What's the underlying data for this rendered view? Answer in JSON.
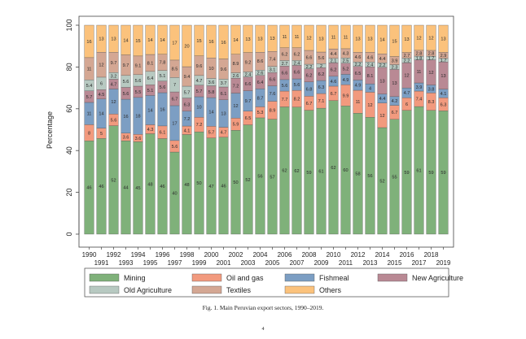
{
  "caption": "Fig. 1. Main Peruvian export sectors, 1990–2019.",
  "page_number": "4",
  "chart_data": {
    "type": "bar",
    "stacked": true,
    "ylabel": "Percentage",
    "ylim": [
      0,
      100
    ],
    "yticks": [
      0,
      20,
      40,
      60,
      80,
      100
    ],
    "grid": false,
    "legend_position": "bottom",
    "categories": [
      "1990",
      "1991",
      "1992",
      "1993",
      "1994",
      "1995",
      "1996",
      "1997",
      "1998",
      "1999",
      "2000",
      "2001",
      "2002",
      "2003",
      "2004",
      "2005",
      "2006",
      "2007",
      "2008",
      "2009",
      "2010",
      "2011",
      "2012",
      "2013",
      "2014",
      "2015",
      "2016",
      "2017",
      "2018",
      "2019"
    ],
    "series": [
      {
        "name": "Mining",
        "color": "#7fb17a",
        "values": [
          46,
          46,
          52,
          44,
          45,
          48,
          46,
          40,
          48,
          50,
          47,
          46,
          50,
          52,
          56,
          57,
          62,
          62,
          59,
          61,
          62,
          60,
          58,
          56,
          52,
          55,
          59,
          61,
          59,
          59
        ]
      },
      {
        "name": "Oil and gas",
        "color": "#f29a7e",
        "values": [
          8,
          5,
          5.6,
          3.6,
          3.6,
          4.3,
          6.1,
          5.6,
          4.1,
          7.2,
          5.7,
          4.7,
          5.9,
          6.5,
          5.3,
          8.9,
          7.7,
          8.2,
          6.7,
          7.1,
          6.7,
          9.9,
          11,
          12,
          12,
          6.7,
          6,
          7.4,
          8.3,
          6.3
        ]
      },
      {
        "name": "Fishmeal",
        "color": "#7c9ec3",
        "values": [
          11,
          14,
          12,
          16,
          18,
          14,
          16,
          17,
          7.2,
          10,
          14,
          13,
          12,
          9.7,
          8.7,
          7.6,
          5.6,
          5.6,
          6.8,
          6.3,
          4.6,
          4.9,
          4.9,
          4,
          4.4,
          4.2,
          4.7,
          3.9,
          3.8,
          4.1
        ]
      },
      {
        "name": "New Agriculture",
        "color": "#b98994",
        "values": [
          5.7,
          4.5,
          4.7,
          5.6,
          5.5,
          5.1,
          5.6,
          6.7,
          6.3,
          5.7,
          5.8,
          6.1,
          7.2,
          6.6,
          6.4,
          6.6,
          6.6,
          6.6,
          6.2,
          6.2,
          6.2,
          5.2,
          6.5,
          8.1,
          13,
          13,
          12,
          11,
          12,
          13
        ]
      },
      {
        "name": "Old Agriculture",
        "color": "#b7c9c1",
        "values": [
          5.4,
          6,
          3.2,
          5.6,
          5.6,
          6.4,
          5.1,
          7,
          5.7,
          4.7,
          3.6,
          3.7,
          2.6,
          2.4,
          2.6,
          3.1,
          2.7,
          2.4,
          2.2,
          2.0,
          2.1,
          2.5,
          2.2,
          2.4,
          2.2,
          2.3,
          2.2,
          1.8,
          1.7,
          1.7
        ]
      },
      {
        "name": "Textiles",
        "color": "#d4a793",
        "values": [
          11,
          12,
          9.7,
          9.7,
          9.1,
          8.1,
          7.8,
          8.5,
          9.4,
          9.6,
          10,
          9.6,
          8.9,
          9.2,
          8.6,
          7.4,
          6.2,
          6.2,
          6.6,
          5.6,
          4.4,
          4.3,
          4.6,
          4.6,
          4.4,
          3.9,
          2.7,
          2.8,
          2.8,
          2.9
        ]
      },
      {
        "name": "Others",
        "color": "#fbc27c",
        "values": [
          16,
          13,
          13,
          14,
          15,
          14,
          14,
          17,
          20,
          15,
          16,
          16,
          14,
          13,
          13,
          13,
          11,
          11,
          12,
          13,
          11,
          11,
          13,
          13,
          14,
          15,
          13,
          12,
          12,
          13
        ]
      }
    ],
    "labels": [
      [
        "46",
        "8",
        "11",
        "5.7",
        "5.4",
        "11",
        "16"
      ],
      [
        "46",
        "5",
        "14",
        "4.5",
        "6",
        "12",
        "13"
      ],
      [
        "52",
        "5.6",
        "12",
        "4.7",
        "3.2",
        "9.7",
        "13"
      ],
      [
        "44",
        "3.6",
        "16",
        "5.6",
        "5.6",
        "9.7",
        "14"
      ],
      [
        "45",
        "3.6",
        "18",
        "5.5",
        "5.6",
        "9.1",
        "15"
      ],
      [
        "48",
        "4.3",
        "14",
        "5.1",
        "6.4",
        "8.1",
        "14"
      ],
      [
        "46",
        "6.1",
        "16",
        "5.6",
        "5.1",
        "7.8",
        "14"
      ],
      [
        "40",
        "5.6",
        "17",
        "6.7",
        "7",
        "8.5",
        "17"
      ],
      [
        "48",
        "4.1",
        "7.2",
        "6.3",
        "5.7",
        "9.4",
        "20"
      ],
      [
        "50",
        "7.2",
        "10",
        "5.7",
        "4.7",
        "9.6",
        "15"
      ],
      [
        "47",
        "5.7",
        "14",
        "5.8",
        "3.6",
        "10",
        "16"
      ],
      [
        "46",
        "4.7",
        "13",
        "6.1",
        "3.7",
        "9.6",
        "16"
      ],
      [
        "50",
        "5.9",
        "12",
        "7.2",
        "2.6",
        "8.9",
        "14"
      ],
      [
        "52",
        "6.5",
        "9.7",
        "6.6",
        "2.4",
        "9.2",
        "13"
      ],
      [
        "56",
        "5.3",
        "8.7",
        "6.4",
        "2.6",
        "8.6",
        "13"
      ],
      [
        "57",
        "8.9",
        "7.6",
        "6.6",
        "3.1",
        "7.4",
        "13"
      ],
      [
        "62",
        "7.7",
        "5.6",
        "6.6",
        "2.7",
        "6.2",
        "11"
      ],
      [
        "62",
        "8.2",
        "5.6",
        "6.6",
        "2.4",
        "6.2",
        "11"
      ],
      [
        "59",
        "6.7",
        "6.8",
        "6.2",
        "2.2",
        "6.6",
        "12"
      ],
      [
        "61",
        "7.1",
        "6.3",
        "6.2",
        "2",
        "5.6",
        "13"
      ],
      [
        "62",
        "6.7",
        "4.6",
        "6.2",
        "2.1",
        "4.4",
        "11"
      ],
      [
        "60",
        "9.9",
        "4.9",
        "5.2",
        "2.5",
        "4.3",
        "11"
      ],
      [
        "58",
        "11",
        "4.9",
        "6.5",
        "2.2",
        "4.6",
        "13"
      ],
      [
        "56",
        "12",
        "4",
        "8.1",
        "2.4",
        "4.6",
        "13"
      ],
      [
        "52",
        "12",
        "4.4",
        "13",
        "2.2",
        "4.4",
        "14"
      ],
      [
        "55",
        "6.7",
        "4.2",
        "13",
        "2.3",
        "3.9",
        "15"
      ],
      [
        "59",
        "6",
        "4.7",
        "12",
        "2.2",
        "2.7",
        "13"
      ],
      [
        "61",
        "7.4",
        "3.9",
        "11",
        "1.8",
        "2.8",
        "12"
      ],
      [
        "59",
        "8.3",
        "3.8",
        "12",
        "1.7",
        "2.8",
        "12"
      ],
      [
        "59",
        "6.3",
        "4.1",
        "13",
        "1.7",
        "2.9",
        "13"
      ]
    ]
  }
}
